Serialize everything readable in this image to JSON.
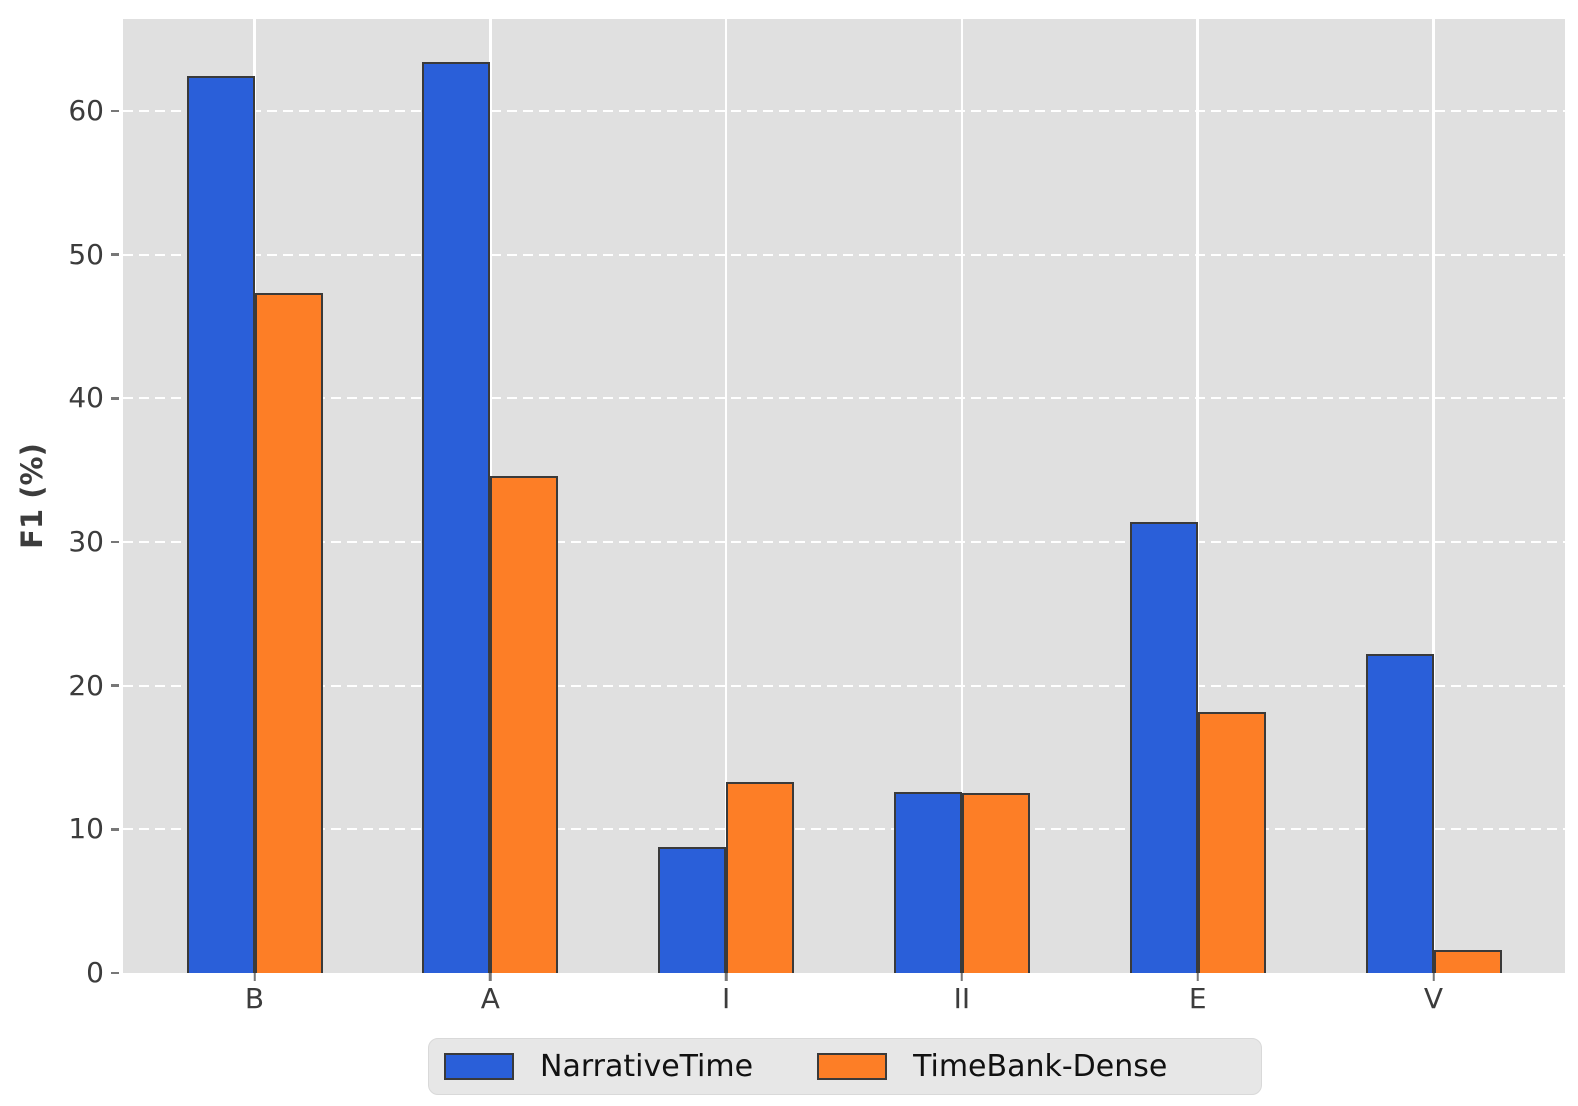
{
  "chart_data": {
    "type": "bar",
    "title": "",
    "xlabel": "",
    "ylabel": "F1 (%)",
    "categories": [
      "B",
      "A",
      "I",
      "II",
      "E",
      "V"
    ],
    "series": [
      {
        "name": "NarrativeTime",
        "color": "#2a5fd9",
        "values": [
          62.4,
          63.4,
          8.8,
          12.6,
          31.4,
          22.2
        ]
      },
      {
        "name": "TimeBank-Dense",
        "color": "#fd7e26",
        "values": [
          47.3,
          34.6,
          13.3,
          12.5,
          18.2,
          1.6
        ]
      }
    ],
    "ylim": [
      0,
      66.4
    ],
    "yticks": [
      0,
      10,
      20,
      30,
      40,
      50,
      60
    ],
    "grid": {
      "horizontal": "dashed white",
      "vertical": "solid white at category centers",
      "on": true
    },
    "legend_position": "bottom center",
    "plot_background": "#e0e0e0",
    "figure_background": "#ffffff",
    "bar_edge_color": "#3a3a3a",
    "tick_text_color": "#3c3c3c",
    "legend_background": "#e7e7e7"
  }
}
